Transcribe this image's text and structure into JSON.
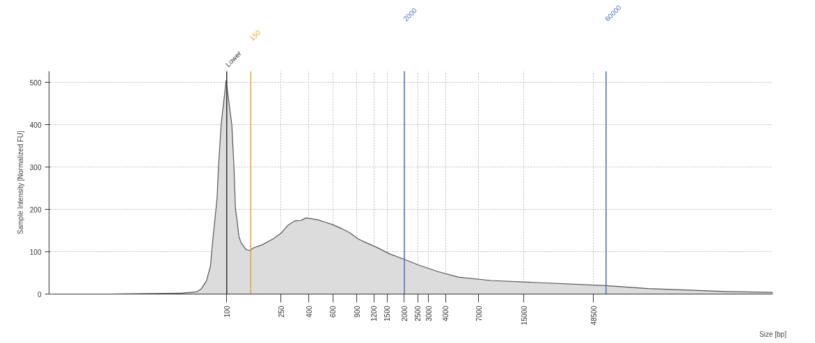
{
  "chart_data": {
    "type": "area",
    "ylabel": "Sample Intensity [Normalized FU]",
    "xlabel": "Size [bp]",
    "log": "x",
    "series": [
      {
        "color": "#dcdcdc",
        "x": [
          5,
          14,
          26,
          46,
          60,
          65,
          71,
          76,
          79,
          85,
          87,
          91,
          99,
          109,
          113,
          116,
          119,
          123,
          128,
          139,
          147,
          159,
          180,
          218,
          252,
          282,
          313,
          349,
          381,
          423,
          470,
          526,
          600,
          692,
          798,
          920,
          1072,
          1245,
          1557,
          2000,
          2530,
          3540,
          4980,
          8610,
          60000,
          122000,
          452000,
          1000000
        ],
        "values": [
          0,
          0,
          1,
          2,
          5,
          12,
          31,
          66,
          126,
          227,
          300,
          400,
          505,
          400,
          300,
          200,
          175,
          135,
          120,
          105,
          103,
          110,
          116,
          130,
          145,
          163,
          173,
          174,
          180,
          178,
          175,
          170,
          164,
          155,
          145,
          130,
          120,
          111,
          95,
          82,
          69,
          53,
          40,
          32,
          20,
          13,
          6,
          4
        ]
      }
    ],
    "xlim": [
      5,
      1000000
    ],
    "xticks": [
      100,
      250,
      400,
      600,
      900,
      1200,
      1500,
      2000,
      2500,
      3000,
      4000,
      7000,
      15000,
      48500
    ],
    "ylim": [
      0,
      527
    ],
    "yticks": [
      0,
      100,
      200,
      300,
      400,
      500
    ],
    "grid": true,
    "ref_lines": [
      {
        "axis": "x",
        "value": 100,
        "label": "Lower",
        "color": "#333333"
      },
      {
        "axis": "x",
        "value": 150,
        "label": "150",
        "color": "#e8a33a"
      },
      {
        "axis": "x",
        "value": 2000,
        "label": "2000",
        "color": "#4a6cc8"
      },
      {
        "axis": "x",
        "value": 60000,
        "label": "60000",
        "color": "#4a6cc8"
      }
    ]
  }
}
